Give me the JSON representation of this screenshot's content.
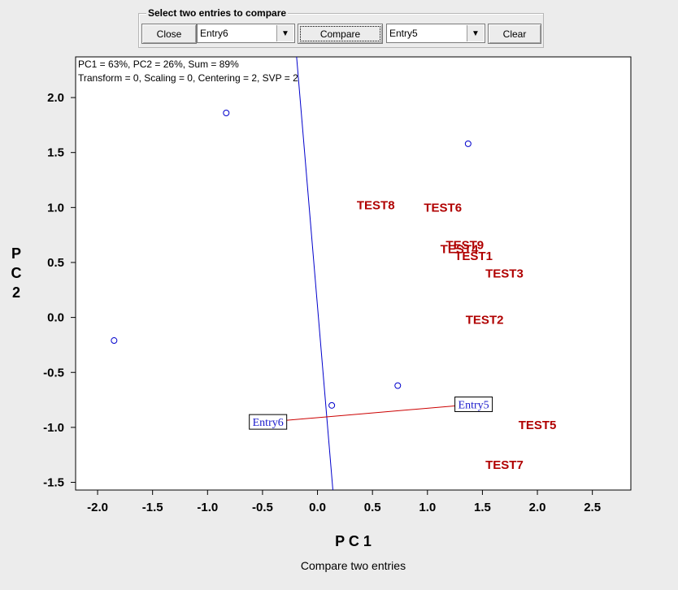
{
  "toolbar": {
    "group_title": "Select two entries to compare",
    "close_label": "Close",
    "entry_a": "Entry6",
    "compare_label": "Compare",
    "entry_b": "Entry5",
    "clear_label": "Clear"
  },
  "chart_data": {
    "type": "scatter",
    "info_line1": "PC1 = 63%, PC2 = 26%, Sum = 89%",
    "info_line2": "Transform = 0, Scaling = 0, Centering = 2, SVP = 2",
    "xlabel": "P C 1",
    "ylabel": "P C 2",
    "caption": "Compare two entries",
    "xlim": [
      -2.2,
      2.85
    ],
    "ylim": [
      -1.57,
      2.37
    ],
    "xticks": [
      -2.0,
      -1.5,
      -1.0,
      -0.5,
      0.0,
      0.5,
      1.0,
      1.5,
      2.0,
      2.5
    ],
    "yticks": [
      2.0,
      1.5,
      1.0,
      0.5,
      0.0,
      -0.5,
      -1.0,
      -1.5
    ],
    "points": [
      {
        "x": -0.83,
        "y": 1.86
      },
      {
        "x": 1.37,
        "y": 1.58
      },
      {
        "x": -1.85,
        "y": -0.21
      },
      {
        "x": 0.73,
        "y": -0.62
      },
      {
        "x": 0.13,
        "y": -0.8
      }
    ],
    "labels": [
      {
        "text": "TEST8",
        "x": 0.53,
        "y": 1.02
      },
      {
        "text": "TEST6",
        "x": 1.14,
        "y": 1.0
      },
      {
        "text": "TEST9",
        "x": 1.34,
        "y": 0.66
      },
      {
        "text": "TEST4",
        "x": 1.29,
        "y": 0.62
      },
      {
        "text": "TEST1",
        "x": 1.42,
        "y": 0.56
      },
      {
        "text": "TEST3",
        "x": 1.7,
        "y": 0.4
      },
      {
        "text": "TEST2",
        "x": 1.52,
        "y": -0.02
      },
      {
        "text": "TEST5",
        "x": 2.0,
        "y": -0.98
      },
      {
        "text": "TEST7",
        "x": 1.7,
        "y": -1.34
      }
    ],
    "entries": [
      {
        "text": "Entry6",
        "x": -0.45,
        "y": -0.95
      },
      {
        "text": "Entry5",
        "x": 1.42,
        "y": -0.79
      }
    ],
    "axis_line": {
      "x1": -0.19,
      "y1": 2.37,
      "x2": 0.14,
      "y2": -1.57
    },
    "compare_line": {
      "x1": -0.45,
      "y1": -0.95,
      "x2": 1.42,
      "y2": -0.79
    },
    "colors": {
      "points": "#0000cc",
      "labels": "#b00000",
      "axis_line": "#0000cc",
      "compare_line": "#cc0000",
      "entry_text": "#1a1acc"
    }
  }
}
